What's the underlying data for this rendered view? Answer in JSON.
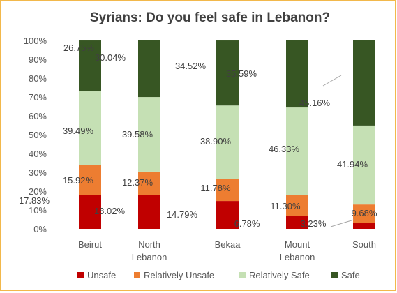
{
  "chart_data": {
    "type": "bar",
    "stacked": true,
    "percent_stacked": true,
    "title": "Syrians: Do you feel safe in Lebanon?",
    "categories": [
      "Beirut",
      "North\nLebanon",
      "Bekaa",
      "Mount\nLebanon",
      "South"
    ],
    "series": [
      {
        "name": "Unsafe",
        "color": "#c00000",
        "values": [
          17.83,
          18.02,
          14.79,
          6.78,
          3.23
        ],
        "labels": [
          "17.83%",
          "18.02%",
          "14.79%",
          "6.78%",
          "3.23%"
        ]
      },
      {
        "name": "Relatively Unsafe",
        "color": "#ed7d31",
        "values": [
          15.92,
          12.37,
          11.78,
          11.3,
          9.68
        ],
        "labels": [
          "15.92%",
          "12.37%",
          "11.78%",
          "11.30%",
          "9.68%"
        ]
      },
      {
        "name": "Relatively Safe",
        "color": "#c5e0b4",
        "values": [
          39.49,
          39.58,
          38.9,
          46.33,
          41.94
        ],
        "labels": [
          "39.49%",
          "39.58%",
          "38.90%",
          "46.33%",
          "41.94%"
        ]
      },
      {
        "name": "Safe",
        "color": "#375623",
        "values": [
          26.75,
          30.04,
          34.52,
          35.59,
          45.16
        ],
        "labels": [
          "26.75%",
          "30.04%",
          "34.52%",
          "35.59%",
          "45.16%"
        ]
      }
    ],
    "yticks": [
      "0%",
      "10%",
      "20%",
      "30%",
      "40%",
      "50%",
      "60%",
      "70%",
      "80%",
      "90%",
      "100%"
    ],
    "ylim": [
      0,
      100
    ],
    "legend_position": "bottom",
    "grid": false
  }
}
